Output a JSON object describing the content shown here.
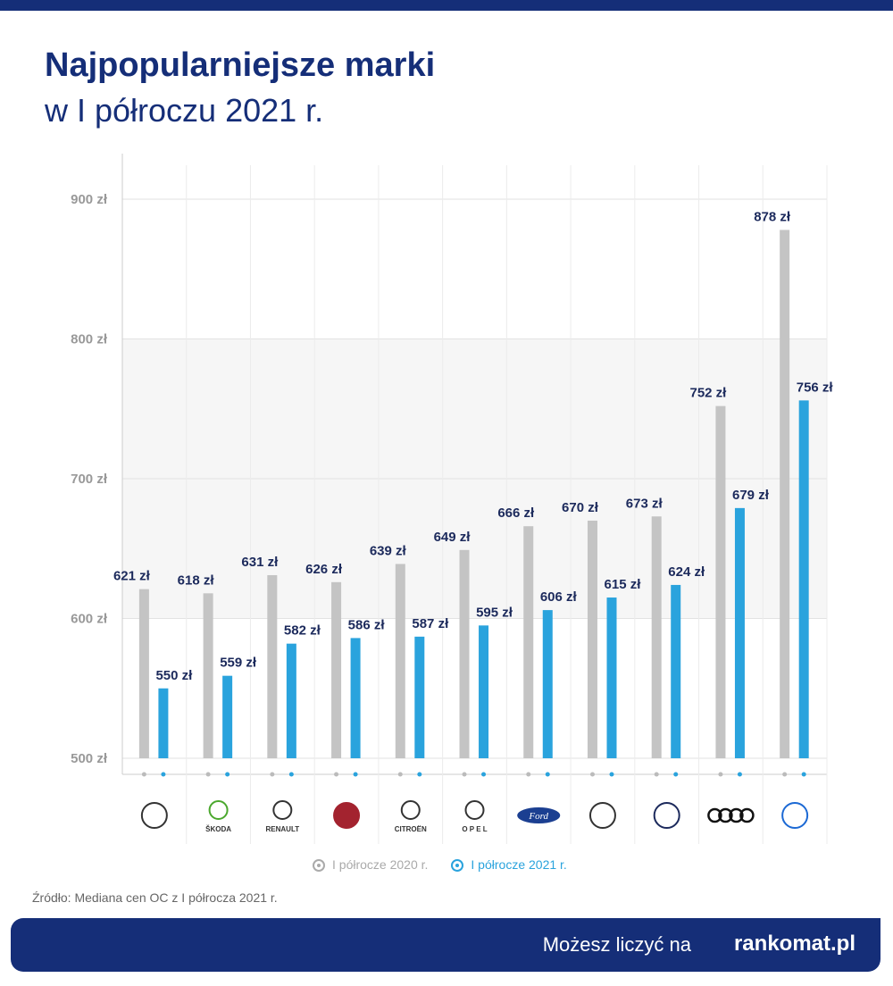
{
  "header": {
    "title": "Najpopularniejsze marki",
    "subtitle": "w I półroczu 2021 r."
  },
  "chart_data": {
    "type": "bar",
    "categories": [
      "Toyota",
      "Škoda",
      "Renault",
      "Fiat",
      "Citroën",
      "Opel",
      "Ford",
      "Peugeot",
      "Volkswagen",
      "Audi",
      "BMW"
    ],
    "series": [
      {
        "name": "I półrocze 2020 r.",
        "color": "#c4c4c4",
        "values": [
          621,
          618,
          631,
          626,
          639,
          649,
          666,
          670,
          673,
          752,
          878
        ]
      },
      {
        "name": "I półrocze 2021 r.",
        "color": "#2aa3dd",
        "values": [
          550,
          559,
          582,
          586,
          587,
          595,
          606,
          615,
          624,
          679,
          756
        ]
      }
    ],
    "value_suffix": " zł",
    "ylim": [
      500,
      900
    ],
    "yticks": [
      500,
      600,
      700,
      800,
      900
    ],
    "ytick_labels": [
      "500 zł",
      "600 zł",
      "700 zł",
      "800 zł",
      "900 zł"
    ],
    "grid": true,
    "legend": "bottom",
    "logo_text": {
      "Škoda": "ŠKODA",
      "Renault": "RENAULT",
      "Citroën": "CITROËN",
      "Opel": "O P E L",
      "Ford": "Ford"
    }
  },
  "source": "Źródło: Mediana cen OC z I półrocza 2021 r.",
  "footer": {
    "slogan": "Możesz liczyć na",
    "brand": "rankomat.pl"
  }
}
